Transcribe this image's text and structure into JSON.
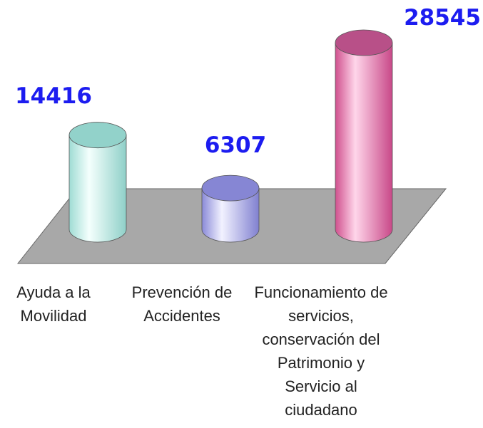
{
  "chart_data": {
    "type": "bar",
    "categories": [
      "Ayuda a la Movilidad",
      "Prevención de Accidentes",
      "Funcionamiento de servicios, conservación del Patrimonio y Servicio al ciudadano"
    ],
    "series": [
      {
        "name": null,
        "colors": [
          "#bff0ea",
          "#b3b3f2",
          "#e878b0"
        ],
        "values": [
          14416,
          6307,
          28545
        ]
      }
    ]
  }
}
